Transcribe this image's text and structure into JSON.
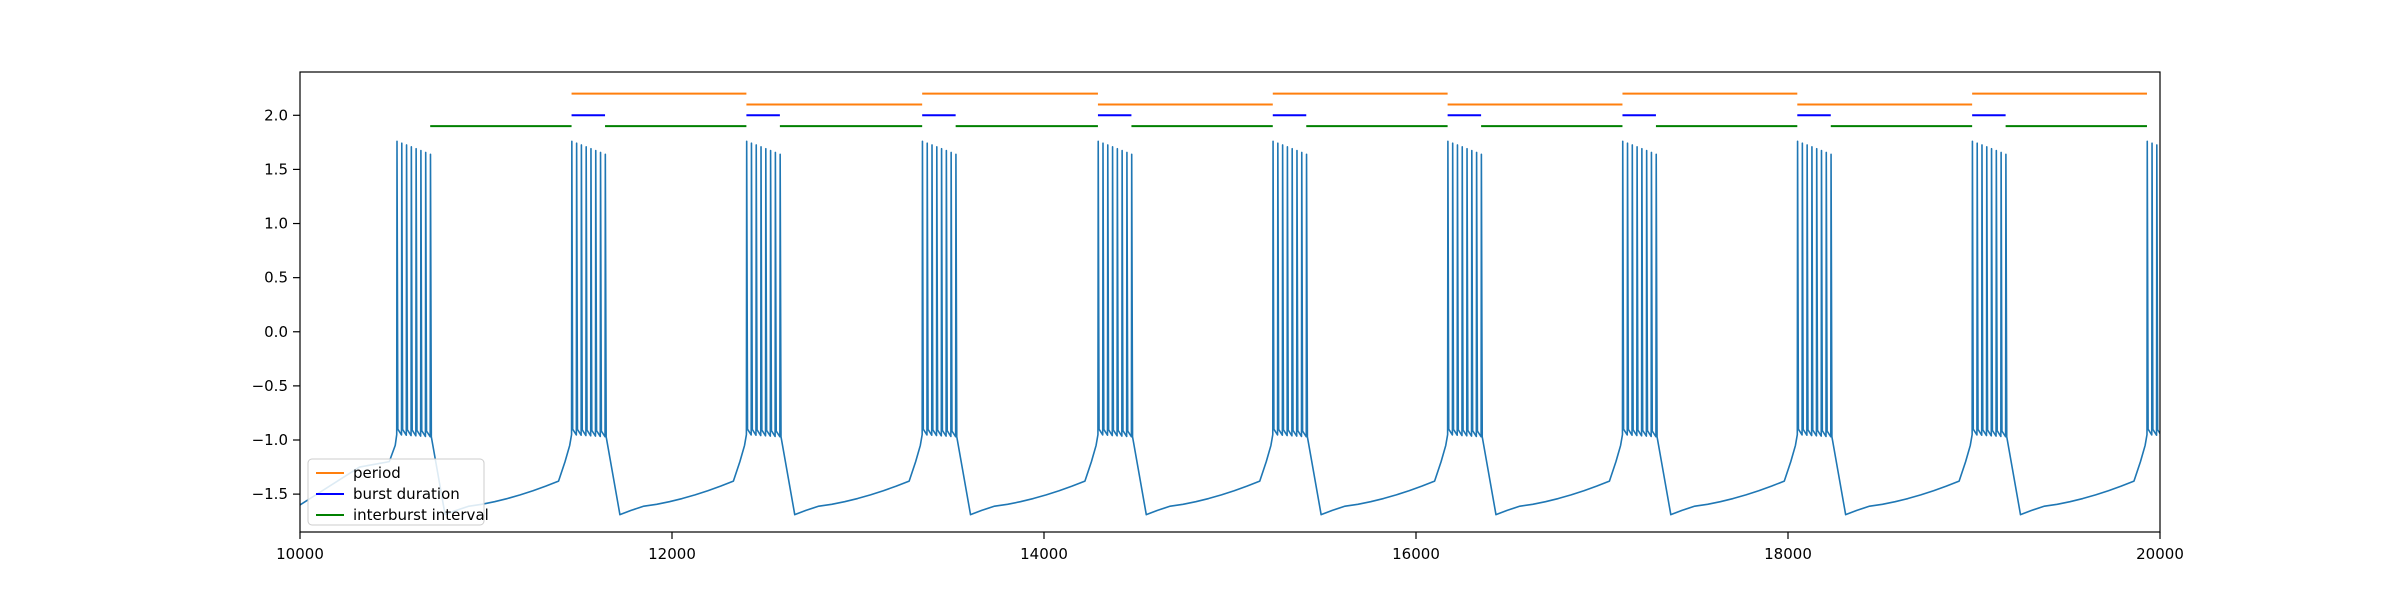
{
  "chart_data": {
    "type": "line",
    "title": "",
    "xlabel": "",
    "ylabel": "",
    "xlim": [
      10000,
      20000
    ],
    "ylim": [
      -1.85,
      2.4
    ],
    "x_ticks": [
      10000,
      12000,
      14000,
      16000,
      18000,
      20000
    ],
    "y_ticks": [
      -1.5,
      -1.0,
      -0.5,
      0.0,
      0.5,
      1.0,
      1.5,
      2.0
    ],
    "x_tick_labels": [
      "10000",
      "12000",
      "14000",
      "16000",
      "18000",
      "20000"
    ],
    "y_tick_labels": [
      "−1.5",
      "−1.0",
      "−0.5",
      "0.0",
      "0.5",
      "1.0",
      "1.5",
      "2.0"
    ],
    "grid": false,
    "legend": {
      "placement": "lower-left",
      "entries": [
        {
          "name": "period",
          "color": "#ff7f0e"
        },
        {
          "name": "burst duration",
          "color": "#0000ff"
        },
        {
          "name": "interburst interval",
          "color": "#008000"
        }
      ]
    },
    "trace": {
      "color": "#1f77b4",
      "burst_starts": [
        10520,
        11460,
        12400,
        13345,
        14290,
        15230,
        16170,
        17110,
        18050,
        18990,
        19930
      ],
      "burst_end_offset": 180,
      "spikes_per_burst": 8,
      "spike_peak": 1.76,
      "spike_trough": -0.95,
      "burst_decay_end": -0.97,
      "post_burst_min": -1.69,
      "plateau_start": -1.62,
      "plateau_end": -1.38,
      "pre_burst_rise": -1.2,
      "start_value": -1.6
    },
    "series": [
      {
        "name": "period",
        "color": "#ff7f0e",
        "segments": [
          {
            "x0": 11460,
            "x1": 12400,
            "y": 2.2
          },
          {
            "x0": 12400,
            "x1": 13345,
            "y": 2.1
          },
          {
            "x0": 13345,
            "x1": 14290,
            "y": 2.2
          },
          {
            "x0": 14290,
            "x1": 15230,
            "y": 2.1
          },
          {
            "x0": 15230,
            "x1": 16170,
            "y": 2.2
          },
          {
            "x0": 16170,
            "x1": 17110,
            "y": 2.1
          },
          {
            "x0": 17110,
            "x1": 18050,
            "y": 2.2
          },
          {
            "x0": 18050,
            "x1": 18990,
            "y": 2.1
          },
          {
            "x0": 18990,
            "x1": 19930,
            "y": 2.2
          }
        ]
      },
      {
        "name": "burst duration",
        "color": "#0000ff",
        "segments": [
          {
            "x0": 11460,
            "x1": 11640,
            "y": 2.0
          },
          {
            "x0": 12400,
            "x1": 12580,
            "y": 2.0
          },
          {
            "x0": 13345,
            "x1": 13525,
            "y": 2.0
          },
          {
            "x0": 14290,
            "x1": 14470,
            "y": 2.0
          },
          {
            "x0": 15230,
            "x1": 15410,
            "y": 2.0
          },
          {
            "x0": 16170,
            "x1": 16350,
            "y": 2.0
          },
          {
            "x0": 17110,
            "x1": 17290,
            "y": 2.0
          },
          {
            "x0": 18050,
            "x1": 18230,
            "y": 2.0
          },
          {
            "x0": 18990,
            "x1": 19170,
            "y": 2.0
          }
        ]
      },
      {
        "name": "interburst interval",
        "color": "#008000",
        "segments": [
          {
            "x0": 10700,
            "x1": 11460,
            "y": 1.9
          },
          {
            "x0": 11640,
            "x1": 12400,
            "y": 1.9
          },
          {
            "x0": 12580,
            "x1": 13345,
            "y": 1.9
          },
          {
            "x0": 13525,
            "x1": 14290,
            "y": 1.9
          },
          {
            "x0": 14470,
            "x1": 15230,
            "y": 1.9
          },
          {
            "x0": 15410,
            "x1": 16170,
            "y": 1.9
          },
          {
            "x0": 16350,
            "x1": 17110,
            "y": 1.9
          },
          {
            "x0": 17290,
            "x1": 18050,
            "y": 1.9
          },
          {
            "x0": 18230,
            "x1": 18990,
            "y": 1.9
          },
          {
            "x0": 19170,
            "x1": 19930,
            "y": 1.9
          }
        ]
      }
    ]
  }
}
